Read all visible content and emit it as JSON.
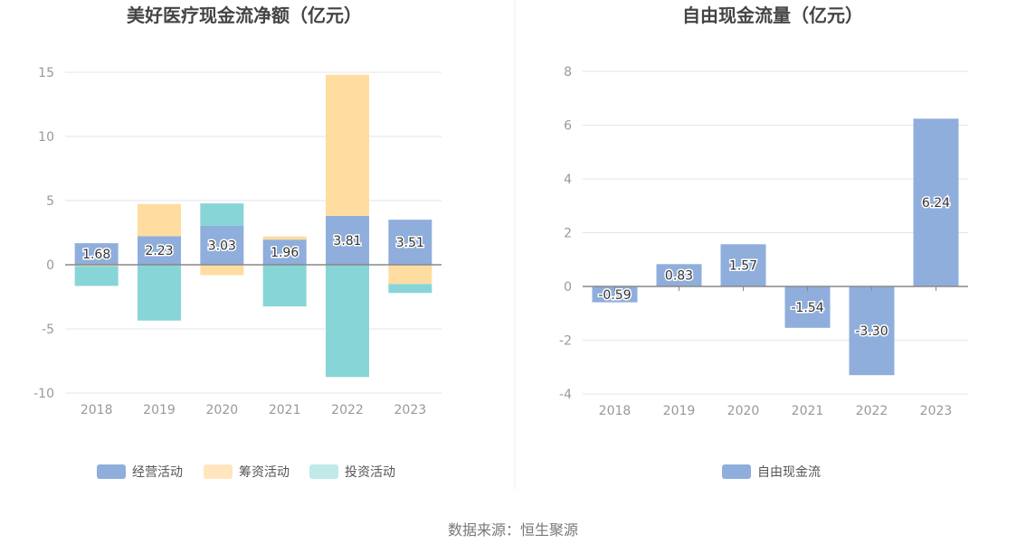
{
  "source_text": "数据来源：恒生聚源",
  "colors": {
    "operating": "#8FAEDC",
    "financing": "#FFDCA0",
    "investing": "#88D5D8",
    "fcf": "#8FAEDC",
    "grid": "#E3E6EE",
    "axis": "#888888"
  },
  "chart_data": [
    {
      "type": "bar",
      "stacked": true,
      "title": "美好医疗现金流净额（亿元）",
      "categories": [
        "2018",
        "2019",
        "2020",
        "2021",
        "2022",
        "2023"
      ],
      "ylim": [
        -10,
        15
      ],
      "yticks": [
        15,
        10,
        5,
        0,
        -5,
        -10
      ],
      "grid": true,
      "legend_position": "bottom",
      "series": [
        {
          "name": "经营活动",
          "values": [
            1.68,
            2.23,
            3.03,
            1.96,
            3.81,
            3.51
          ],
          "labels": [
            "1.68",
            "2.23",
            "3.03",
            "1.96",
            "3.81",
            "3.51"
          ]
        },
        {
          "name": "筹资活动",
          "values": [
            -0.1,
            2.5,
            -0.8,
            0.25,
            11.0,
            -1.5
          ]
        },
        {
          "name": "投资活动",
          "values": [
            -1.55,
            -4.35,
            1.75,
            -3.25,
            -8.75,
            -0.7
          ]
        }
      ]
    },
    {
      "type": "bar",
      "title": "自由现金流量（亿元）",
      "categories": [
        "2018",
        "2019",
        "2020",
        "2021",
        "2022",
        "2023"
      ],
      "ylim": [
        -4,
        8
      ],
      "yticks": [
        8,
        6,
        4,
        2,
        0,
        -2,
        -4
      ],
      "grid": true,
      "legend_position": "bottom",
      "series": [
        {
          "name": "自由现金流",
          "values": [
            -0.59,
            0.83,
            1.57,
            -1.54,
            -3.3,
            6.24
          ],
          "labels": [
            "-0.59",
            "0.83",
            "1.57",
            "-1.54",
            "-3.30",
            "6.24"
          ]
        }
      ]
    }
  ]
}
